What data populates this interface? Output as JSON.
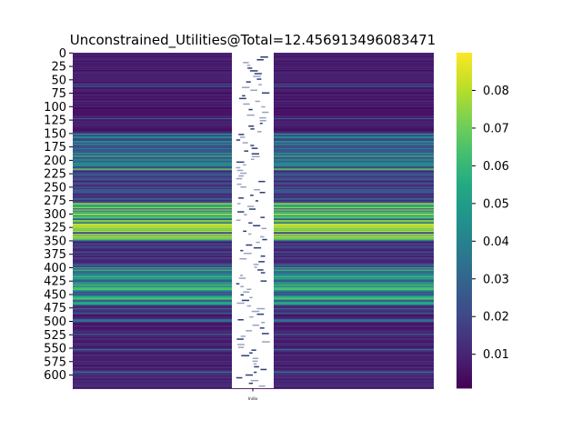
{
  "chart_data": {
    "type": "heatmap",
    "title": "Unconstrained_Utilities@Total=12.456913496083471",
    "xlabel": "",
    "ylabel": "",
    "x_tick_labels": [
      "Indiv"
    ],
    "y_tick_labels": [
      "0",
      "25",
      "50",
      "75",
      "100",
      "125",
      "150",
      "175",
      "200",
      "225",
      "250",
      "275",
      "300",
      "325",
      "350",
      "375",
      "400",
      "425",
      "450",
      "475",
      "500",
      "525",
      "550",
      "575",
      "600"
    ],
    "row_count": 625,
    "row_range": [
      0,
      624
    ],
    "colorbar": {
      "colormap": "viridis",
      "range": [
        0.001,
        0.09
      ],
      "tick_labels": [
        "0.01",
        "0.02",
        "0.03",
        "0.04",
        "0.05",
        "0.06",
        "0.07",
        "0.08"
      ],
      "ticks": [
        0.01,
        0.02,
        0.03,
        0.04,
        0.05,
        0.06,
        0.07,
        0.08
      ]
    },
    "row_value_profile": [
      {
        "rows": [
          0,
          149
        ],
        "level": 0.008
      },
      {
        "rows": [
          150,
          219
        ],
        "level": 0.035
      },
      {
        "rows": [
          220,
          279
        ],
        "level": 0.02
      },
      {
        "rows": [
          280,
          349
        ],
        "level": 0.06
      },
      {
        "rows": [
          350,
          399
        ],
        "level": 0.018
      },
      {
        "rows": [
          400,
          469
        ],
        "level": 0.045
      },
      {
        "rows": [
          470,
          624
        ],
        "level": 0.01
      }
    ],
    "annotation_column": "overlapping cell value annotations (illegible)"
  }
}
